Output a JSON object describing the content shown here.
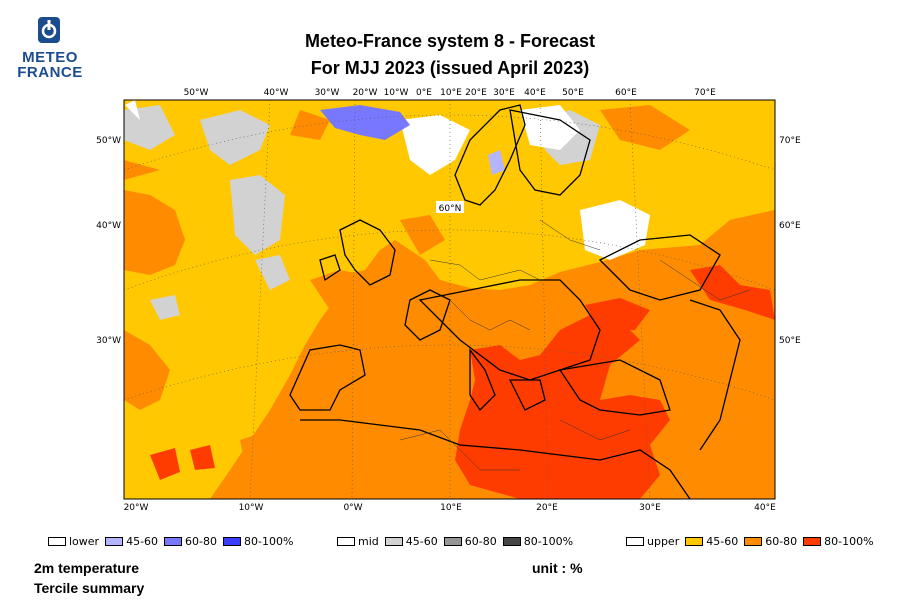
{
  "logo": {
    "line1": "METEO",
    "line2": "FRANCE",
    "icon": "meteo-france-logo-icon"
  },
  "title": {
    "line1": "Meteo-France system 8  -  Forecast",
    "line2": "For MJJ 2023      (issued April 2023)"
  },
  "map": {
    "top_ticks": [
      "50°W",
      "40°W",
      "30°W",
      "20°W",
      "10°W",
      "0°E",
      "10°E",
      "20°E",
      "30°E",
      "40°E",
      "50°E",
      "60°E",
      "70°E"
    ],
    "left_ticks": [
      "50°W",
      "40°W",
      "30°W"
    ],
    "right_ticks": [
      "70°E",
      "60°E",
      "50°E"
    ],
    "bottom_ticks": [
      "20°W",
      "10°W",
      "0°W",
      "10°E",
      "20°E",
      "30°E",
      "40°E"
    ],
    "lat_label": "60°N",
    "colors": {
      "upper_45_60": "#ffc800",
      "upper_60_80": "#ff8c00",
      "upper_80_100": "#ff3c00",
      "mid_45_60": "#d2d2d2",
      "lower_45_60": "#b4b4ff",
      "lower_60_80": "#7878ff",
      "lower_80_100": "#3c3cff"
    }
  },
  "legend": {
    "lower": {
      "label": "lower",
      "items": [
        "45-60",
        "60-80",
        "80-100%"
      ],
      "colors": [
        "#b4b4ff",
        "#7878ff",
        "#3c3cff"
      ]
    },
    "mid": {
      "label": "mid",
      "items": [
        "45-60",
        "60-80",
        "80-100%"
      ],
      "colors": [
        "#d2d2d2",
        "#969696",
        "#464646"
      ]
    },
    "upper": {
      "label": "upper",
      "items": [
        "45-60",
        "60-80",
        "80-100%"
      ],
      "colors": [
        "#ffc800",
        "#ff8c00",
        "#ff3c00"
      ]
    }
  },
  "footer": {
    "var_line1": "2m temperature",
    "var_line2": "Tercile summary",
    "unit": "unit : %"
  }
}
